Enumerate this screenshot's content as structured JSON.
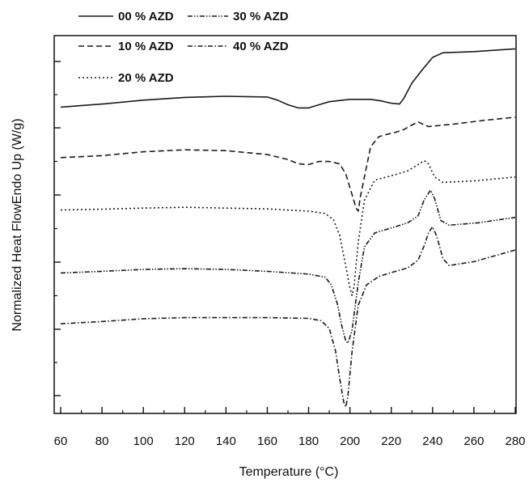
{
  "chart_data": {
    "type": "line",
    "xlabel": "Temperature (°C)",
    "ylabel": "Normalized Heat FlowEndo Up (W/g)",
    "xlim": [
      60,
      280
    ],
    "x_ticks": [
      "60",
      "80",
      "100",
      "120",
      "140",
      "160",
      "180",
      "200",
      "220",
      "240",
      "260",
      "280"
    ],
    "y_tick_labels_shown": false,
    "legend_placement": "top-left",
    "series": [
      {
        "name": "00 % AZD",
        "dash": "solid",
        "points": [
          [
            60,
            0.72
          ],
          [
            80,
            0.728
          ],
          [
            100,
            0.738
          ],
          [
            120,
            0.745
          ],
          [
            140,
            0.748
          ],
          [
            160,
            0.746
          ],
          [
            165,
            0.738
          ],
          [
            170,
            0.726
          ],
          [
            175,
            0.718
          ],
          [
            180,
            0.718
          ],
          [
            185,
            0.726
          ],
          [
            190,
            0.734
          ],
          [
            200,
            0.74
          ],
          [
            210,
            0.74
          ],
          [
            215,
            0.736
          ],
          [
            220,
            0.73
          ],
          [
            224,
            0.728
          ],
          [
            226,
            0.742
          ],
          [
            230,
            0.782
          ],
          [
            235,
            0.816
          ],
          [
            240,
            0.848
          ],
          [
            245,
            0.86
          ],
          [
            260,
            0.863
          ],
          [
            280,
            0.87
          ]
        ]
      },
      {
        "name": "10 % AZD",
        "dash": "dashed",
        "points": [
          [
            60,
            0.59
          ],
          [
            80,
            0.595
          ],
          [
            100,
            0.605
          ],
          [
            120,
            0.61
          ],
          [
            140,
            0.608
          ],
          [
            160,
            0.598
          ],
          [
            170,
            0.585
          ],
          [
            175,
            0.574
          ],
          [
            180,
            0.572
          ],
          [
            185,
            0.58
          ],
          [
            190,
            0.58
          ],
          [
            195,
            0.574
          ],
          [
            198,
            0.548
          ],
          [
            201,
            0.495
          ],
          [
            203,
            0.46
          ],
          [
            204,
            0.452
          ],
          [
            205,
            0.488
          ],
          [
            207,
            0.54
          ],
          [
            210,
            0.618
          ],
          [
            214,
            0.644
          ],
          [
            218,
            0.65
          ],
          [
            222,
            0.655
          ],
          [
            226,
            0.662
          ],
          [
            230,
            0.674
          ],
          [
            233,
            0.682
          ],
          [
            236,
            0.674
          ],
          [
            238,
            0.67
          ],
          [
            250,
            0.676
          ],
          [
            265,
            0.686
          ],
          [
            280,
            0.694
          ]
        ]
      },
      {
        "name": "20 % AZD",
        "dash": "dotted",
        "points": [
          [
            60,
            0.455
          ],
          [
            80,
            0.457
          ],
          [
            100,
            0.46
          ],
          [
            120,
            0.462
          ],
          [
            140,
            0.46
          ],
          [
            160,
            0.458
          ],
          [
            180,
            0.452
          ],
          [
            188,
            0.446
          ],
          [
            192,
            0.43
          ],
          [
            195,
            0.39
          ],
          [
            198,
            0.31
          ],
          [
            200,
            0.255
          ],
          [
            201,
            0.235
          ],
          [
            202,
            0.258
          ],
          [
            204,
            0.372
          ],
          [
            207,
            0.48
          ],
          [
            212,
            0.532
          ],
          [
            222,
            0.546
          ],
          [
            228,
            0.556
          ],
          [
            233,
            0.572
          ],
          [
            236,
            0.582
          ],
          [
            238,
            0.574
          ],
          [
            241,
            0.54
          ],
          [
            245,
            0.526
          ],
          [
            260,
            0.53
          ],
          [
            280,
            0.54
          ]
        ]
      },
      {
        "name": "30 % AZD",
        "dash": "dashdotdot",
        "points": [
          [
            60,
            0.293
          ],
          [
            80,
            0.297
          ],
          [
            100,
            0.302
          ],
          [
            120,
            0.304
          ],
          [
            140,
            0.302
          ],
          [
            160,
            0.297
          ],
          [
            180,
            0.29
          ],
          [
            188,
            0.282
          ],
          [
            191,
            0.262
          ],
          [
            194,
            0.212
          ],
          [
            196,
            0.158
          ],
          [
            198,
            0.118
          ],
          [
            199,
            0.112
          ],
          [
            201,
            0.145
          ],
          [
            204,
            0.268
          ],
          [
            207,
            0.36
          ],
          [
            212,
            0.396
          ],
          [
            222,
            0.412
          ],
          [
            228,
            0.422
          ],
          [
            233,
            0.44
          ],
          [
            236,
            0.482
          ],
          [
            239,
            0.506
          ],
          [
            241,
            0.484
          ],
          [
            244,
            0.428
          ],
          [
            248,
            0.416
          ],
          [
            262,
            0.422
          ],
          [
            280,
            0.436
          ]
        ]
      },
      {
        "name": "40 % AZD",
        "dash": "dashdot",
        "points": [
          [
            60,
            0.162
          ],
          [
            80,
            0.168
          ],
          [
            100,
            0.175
          ],
          [
            120,
            0.178
          ],
          [
            140,
            0.178
          ],
          [
            160,
            0.178
          ],
          [
            180,
            0.176
          ],
          [
            186,
            0.17
          ],
          [
            190,
            0.15
          ],
          [
            193,
            0.092
          ],
          [
            195,
            0.022
          ],
          [
            197,
            -0.04
          ],
          [
            198,
            -0.052
          ],
          [
            199,
            -0.025
          ],
          [
            201,
            0.09
          ],
          [
            204,
            0.21
          ],
          [
            208,
            0.262
          ],
          [
            214,
            0.284
          ],
          [
            220,
            0.294
          ],
          [
            228,
            0.306
          ],
          [
            233,
            0.326
          ],
          [
            236,
            0.364
          ],
          [
            238,
            0.396
          ],
          [
            240,
            0.412
          ],
          [
            242,
            0.388
          ],
          [
            245,
            0.33
          ],
          [
            248,
            0.312
          ],
          [
            260,
            0.322
          ],
          [
            280,
            0.352
          ]
        ]
      }
    ]
  }
}
